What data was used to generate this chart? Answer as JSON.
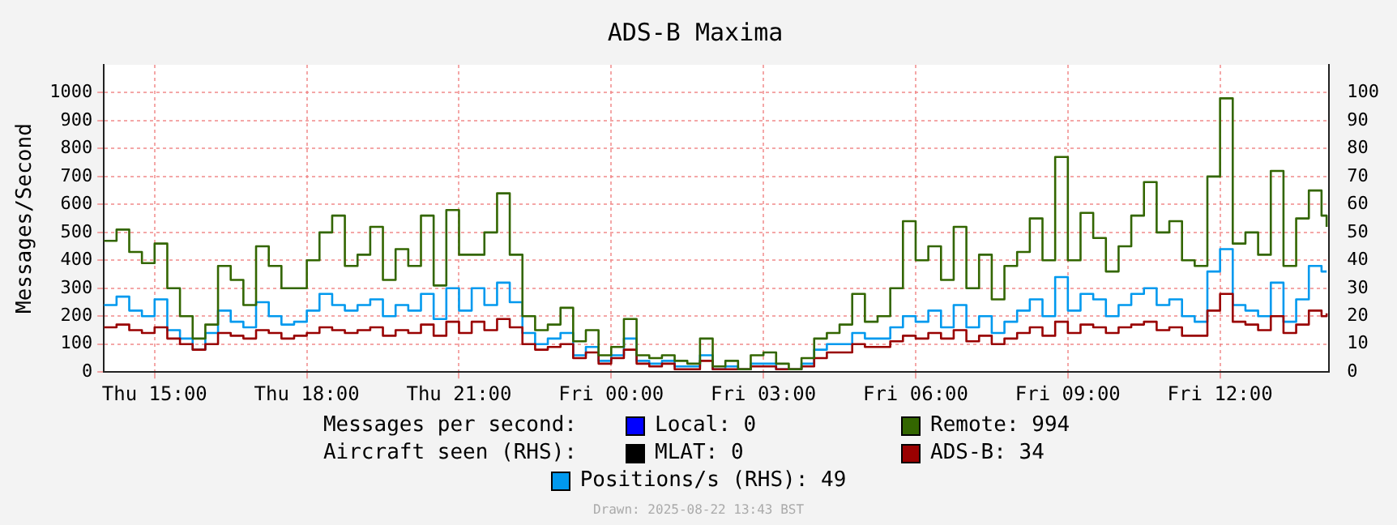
{
  "chart_data": {
    "type": "step",
    "title": "ADS-B Maxima",
    "ylabel": "Messages/Second",
    "annotations": [
      "Messages per second:",
      "Aircraft seen (RHS):",
      "Drawn: 2025-08-22 13:43 BST"
    ],
    "x": [
      "2025-08-21T14:00",
      "2025-08-21T14:15",
      "2025-08-21T14:30",
      "2025-08-21T14:45",
      "2025-08-21T15:00",
      "2025-08-21T15:15",
      "2025-08-21T15:30",
      "2025-08-21T15:45",
      "2025-08-21T16:00",
      "2025-08-21T16:15",
      "2025-08-21T16:30",
      "2025-08-21T16:45",
      "2025-08-21T17:00",
      "2025-08-21T17:15",
      "2025-08-21T17:30",
      "2025-08-21T17:45",
      "2025-08-21T18:00",
      "2025-08-21T18:15",
      "2025-08-21T18:30",
      "2025-08-21T18:45",
      "2025-08-21T19:00",
      "2025-08-21T19:15",
      "2025-08-21T19:30",
      "2025-08-21T19:45",
      "2025-08-21T20:00",
      "2025-08-21T20:15",
      "2025-08-21T20:30",
      "2025-08-21T20:45",
      "2025-08-21T21:00",
      "2025-08-21T21:15",
      "2025-08-21T21:30",
      "2025-08-21T21:45",
      "2025-08-21T22:00",
      "2025-08-21T22:15",
      "2025-08-21T22:30",
      "2025-08-21T22:45",
      "2025-08-21T23:00",
      "2025-08-21T23:15",
      "2025-08-21T23:30",
      "2025-08-21T23:45",
      "2025-08-22T00:00",
      "2025-08-22T00:15",
      "2025-08-22T00:30",
      "2025-08-22T00:45",
      "2025-08-22T01:00",
      "2025-08-22T01:15",
      "2025-08-22T01:30",
      "2025-08-22T01:45",
      "2025-08-22T02:00",
      "2025-08-22T02:15",
      "2025-08-22T02:30",
      "2025-08-22T02:45",
      "2025-08-22T03:00",
      "2025-08-22T03:15",
      "2025-08-22T03:30",
      "2025-08-22T03:45",
      "2025-08-22T04:00",
      "2025-08-22T04:15",
      "2025-08-22T04:30",
      "2025-08-22T04:45",
      "2025-08-22T05:00",
      "2025-08-22T05:15",
      "2025-08-22T05:30",
      "2025-08-22T05:45",
      "2025-08-22T06:00",
      "2025-08-22T06:15",
      "2025-08-22T06:30",
      "2025-08-22T06:45",
      "2025-08-22T07:00",
      "2025-08-22T07:15",
      "2025-08-22T07:30",
      "2025-08-22T07:45",
      "2025-08-22T08:00",
      "2025-08-22T08:15",
      "2025-08-22T08:30",
      "2025-08-22T08:45",
      "2025-08-22T09:00",
      "2025-08-22T09:15",
      "2025-08-22T09:30",
      "2025-08-22T09:45",
      "2025-08-22T10:00",
      "2025-08-22T10:15",
      "2025-08-22T10:30",
      "2025-08-22T10:45",
      "2025-08-22T11:00",
      "2025-08-22T11:15",
      "2025-08-22T11:30",
      "2025-08-22T11:45",
      "2025-08-22T12:00",
      "2025-08-22T12:15",
      "2025-08-22T12:30",
      "2025-08-22T12:45",
      "2025-08-22T13:00",
      "2025-08-22T13:15",
      "2025-08-22T13:30",
      "2025-08-22T13:45",
      "2025-08-22T14:00",
      "2025-08-22T14:06"
    ],
    "series": [
      {
        "name": "Local: 0",
        "color": "#0000ff",
        "values": [
          null,
          null,
          null,
          null,
          null,
          null,
          null,
          null,
          null,
          null,
          null,
          null,
          null,
          null,
          null,
          null,
          null,
          null,
          null,
          null,
          null,
          null,
          null,
          null,
          null,
          null,
          null,
          null,
          null,
          null,
          null,
          null,
          null,
          null,
          null,
          null,
          null,
          null,
          null,
          null,
          null,
          null,
          null,
          null,
          null,
          null,
          null,
          null,
          null,
          null,
          null,
          null,
          null,
          null,
          null,
          null,
          null,
          null,
          null,
          null,
          null,
          null,
          null,
          null,
          null,
          null,
          null,
          null,
          null,
          null,
          null,
          null,
          null,
          null,
          null,
          null,
          null,
          null,
          null,
          null,
          null,
          null,
          null,
          null,
          null,
          null,
          null,
          null,
          null,
          null,
          null,
          null,
          null,
          null,
          null,
          null,
          null,
          null
        ]
      },
      {
        "name": "Remote: 994",
        "color": "#336600",
        "values": [
          470,
          510,
          430,
          390,
          460,
          300,
          200,
          120,
          170,
          380,
          330,
          240,
          450,
          380,
          300,
          300,
          400,
          500,
          560,
          380,
          420,
          520,
          330,
          440,
          380,
          560,
          310,
          580,
          420,
          420,
          500,
          640,
          420,
          200,
          150,
          170,
          230,
          110,
          150,
          60,
          90,
          190,
          60,
          50,
          60,
          40,
          30,
          120,
          20,
          40,
          10,
          60,
          70,
          30,
          10,
          50,
          120,
          140,
          170,
          280,
          180,
          200,
          300,
          540,
          400,
          450,
          330,
          520,
          300,
          420,
          260,
          380,
          430,
          550,
          400,
          770,
          400,
          570,
          480,
          360,
          450,
          560,
          680,
          500,
          540,
          400,
          380,
          700,
          980,
          460,
          500,
          420,
          720,
          380,
          550,
          650,
          560,
          520
        ]
      },
      {
        "name": "MLAT: 0",
        "color": "#000000",
        "values": [
          null,
          null,
          null,
          null,
          null,
          null,
          null,
          null,
          null,
          null,
          null,
          null,
          null,
          null,
          null,
          null,
          null,
          null,
          null,
          null,
          null,
          null,
          null,
          null,
          null,
          null,
          null,
          null,
          null,
          null,
          null,
          null,
          null,
          null,
          null,
          null,
          null,
          null,
          null,
          null,
          null,
          null,
          null,
          null,
          null,
          null,
          null,
          null,
          null,
          null,
          null,
          null,
          null,
          null,
          null,
          null,
          null,
          null,
          null,
          null,
          null,
          null,
          null,
          null,
          null,
          null,
          null,
          null,
          null,
          null,
          null,
          null,
          null,
          null,
          null,
          null,
          null,
          null,
          null,
          null,
          null,
          null,
          null,
          null,
          null,
          null,
          null,
          null,
          null,
          null,
          null,
          null,
          null,
          null,
          null,
          null,
          null,
          null
        ]
      },
      {
        "name": "ADS-B: 34",
        "color": "#990000",
        "axis": "y2",
        "values": [
          16,
          17,
          15,
          14,
          16,
          12,
          10,
          8,
          10,
          14,
          13,
          12,
          15,
          14,
          12,
          13,
          14,
          16,
          15,
          14,
          15,
          16,
          13,
          15,
          14,
          17,
          13,
          18,
          14,
          18,
          15,
          19,
          16,
          10,
          8,
          9,
          10,
          5,
          7,
          3,
          5,
          8,
          3,
          2,
          3,
          1,
          1,
          4,
          1,
          1,
          1,
          2,
          2,
          1,
          1,
          2,
          5,
          7,
          7,
          10,
          9,
          9,
          11,
          13,
          12,
          14,
          12,
          15,
          11,
          13,
          10,
          12,
          14,
          16,
          13,
          18,
          14,
          17,
          16,
          14,
          16,
          17,
          18,
          15,
          16,
          13,
          13,
          22,
          28,
          18,
          17,
          15,
          20,
          14,
          17,
          22,
          20,
          21
        ]
      },
      {
        "name": "Positions/s (RHS): 49",
        "color": "#0099ee",
        "axis": "y2",
        "values": [
          24,
          27,
          22,
          20,
          26,
          15,
          12,
          8,
          14,
          22,
          18,
          16,
          25,
          20,
          17,
          18,
          22,
          28,
          24,
          22,
          24,
          26,
          20,
          24,
          22,
          28,
          19,
          30,
          22,
          30,
          24,
          32,
          25,
          14,
          10,
          12,
          14,
          6,
          9,
          4,
          6,
          12,
          4,
          3,
          4,
          2,
          2,
          6,
          1,
          2,
          1,
          3,
          3,
          1,
          1,
          3,
          8,
          10,
          10,
          14,
          12,
          12,
          16,
          20,
          18,
          22,
          16,
          24,
          16,
          20,
          14,
          18,
          22,
          26,
          20,
          34,
          22,
          28,
          26,
          20,
          24,
          28,
          30,
          24,
          26,
          20,
          18,
          36,
          44,
          24,
          22,
          20,
          32,
          18,
          26,
          38,
          36,
          36
        ]
      }
    ],
    "xlim": [
      "2025-08-21T14:00",
      "2025-08-22T14:09"
    ],
    "xticks": [
      {
        "value": "2025-08-21T15:00",
        "label": "Thu 15:00"
      },
      {
        "value": "2025-08-21T18:00",
        "label": "Thu 18:00"
      },
      {
        "value": "2025-08-21T21:00",
        "label": "Thu 21:00"
      },
      {
        "value": "2025-08-22T00:00",
        "label": "Fri 00:00"
      },
      {
        "value": "2025-08-22T03:00",
        "label": "Fri 03:00"
      },
      {
        "value": "2025-08-22T06:00",
        "label": "Fri 06:00"
      },
      {
        "value": "2025-08-22T09:00",
        "label": "Fri 09:00"
      },
      {
        "value": "2025-08-22T12:00",
        "label": "Fri 12:00"
      }
    ],
    "ylim": [
      0,
      1100
    ],
    "yticks": [
      0,
      100,
      200,
      300,
      400,
      500,
      600,
      700,
      800,
      900,
      1000
    ],
    "y2lim": [
      0,
      110
    ],
    "y2ticks": [
      0,
      10,
      20,
      30,
      40,
      50,
      60,
      70,
      80,
      90,
      100
    ],
    "grid": true,
    "legend": "bottom",
    "line_style": "solid",
    "marker": "none"
  }
}
